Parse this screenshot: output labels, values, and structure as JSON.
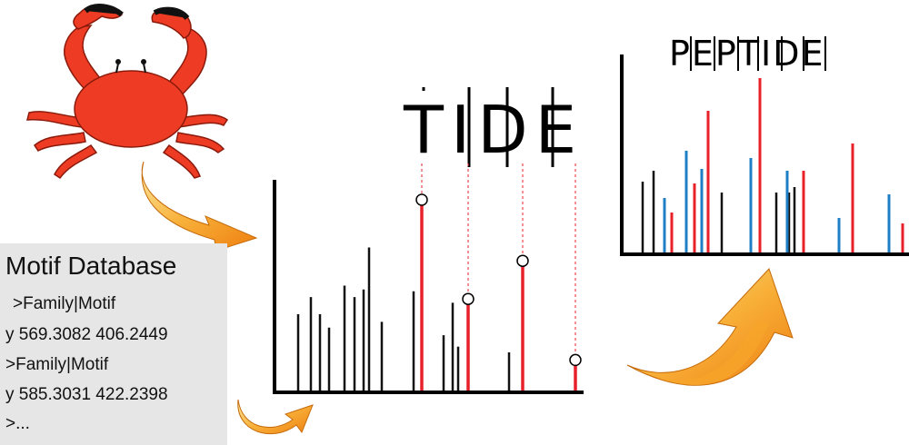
{
  "colors": {
    "black_peak": "#111111",
    "red_peak": "#e8202a",
    "blue_peak": "#1f7fc4",
    "arrow_orange": "#f79a1e",
    "crab_red": "#ee3c24",
    "db_panel": "#e6e6e6"
  },
  "tide_title": "TIDE",
  "peptide_title": "PEPTIDE",
  "motif_database": {
    "title": "Motif Database",
    "lines": [
      ">Family|Motif",
      "y 569.3082 406.2449",
      ">Family|Motif",
      "y 585.3031 422.2398",
      ">..."
    ]
  },
  "icons": {
    "crab": "crab-icon",
    "arrow_crab_to_spectrum": "curved-arrow-icon",
    "arrow_db_to_spectrum": "curved-arrow-icon",
    "arrow_spectrum_to_peptide": "curved-arrow-icon"
  },
  "tide_spectrum": {
    "black_peaks": [
      0.4,
      0.49,
      0.4,
      0.33,
      0.55,
      0.49,
      0.53,
      0.75,
      0.36,
      0.52,
      0.29,
      0.46,
      0.23,
      0.2
    ],
    "red_peaks": [
      1.0,
      0.48,
      0.68,
      0.16
    ]
  },
  "peptide_spectrum": {
    "black_peaks": [
      0.39,
      0.45,
      0.33,
      0.33,
      0.36,
      0.33
    ],
    "red_peaks": [
      0.22,
      0.38,
      0.78,
      0.96,
      0.45,
      0.6,
      0.16
    ],
    "blue_peaks": [
      0.3,
      0.56,
      0.46,
      0.52,
      0.45,
      0.19,
      0.32
    ]
  }
}
